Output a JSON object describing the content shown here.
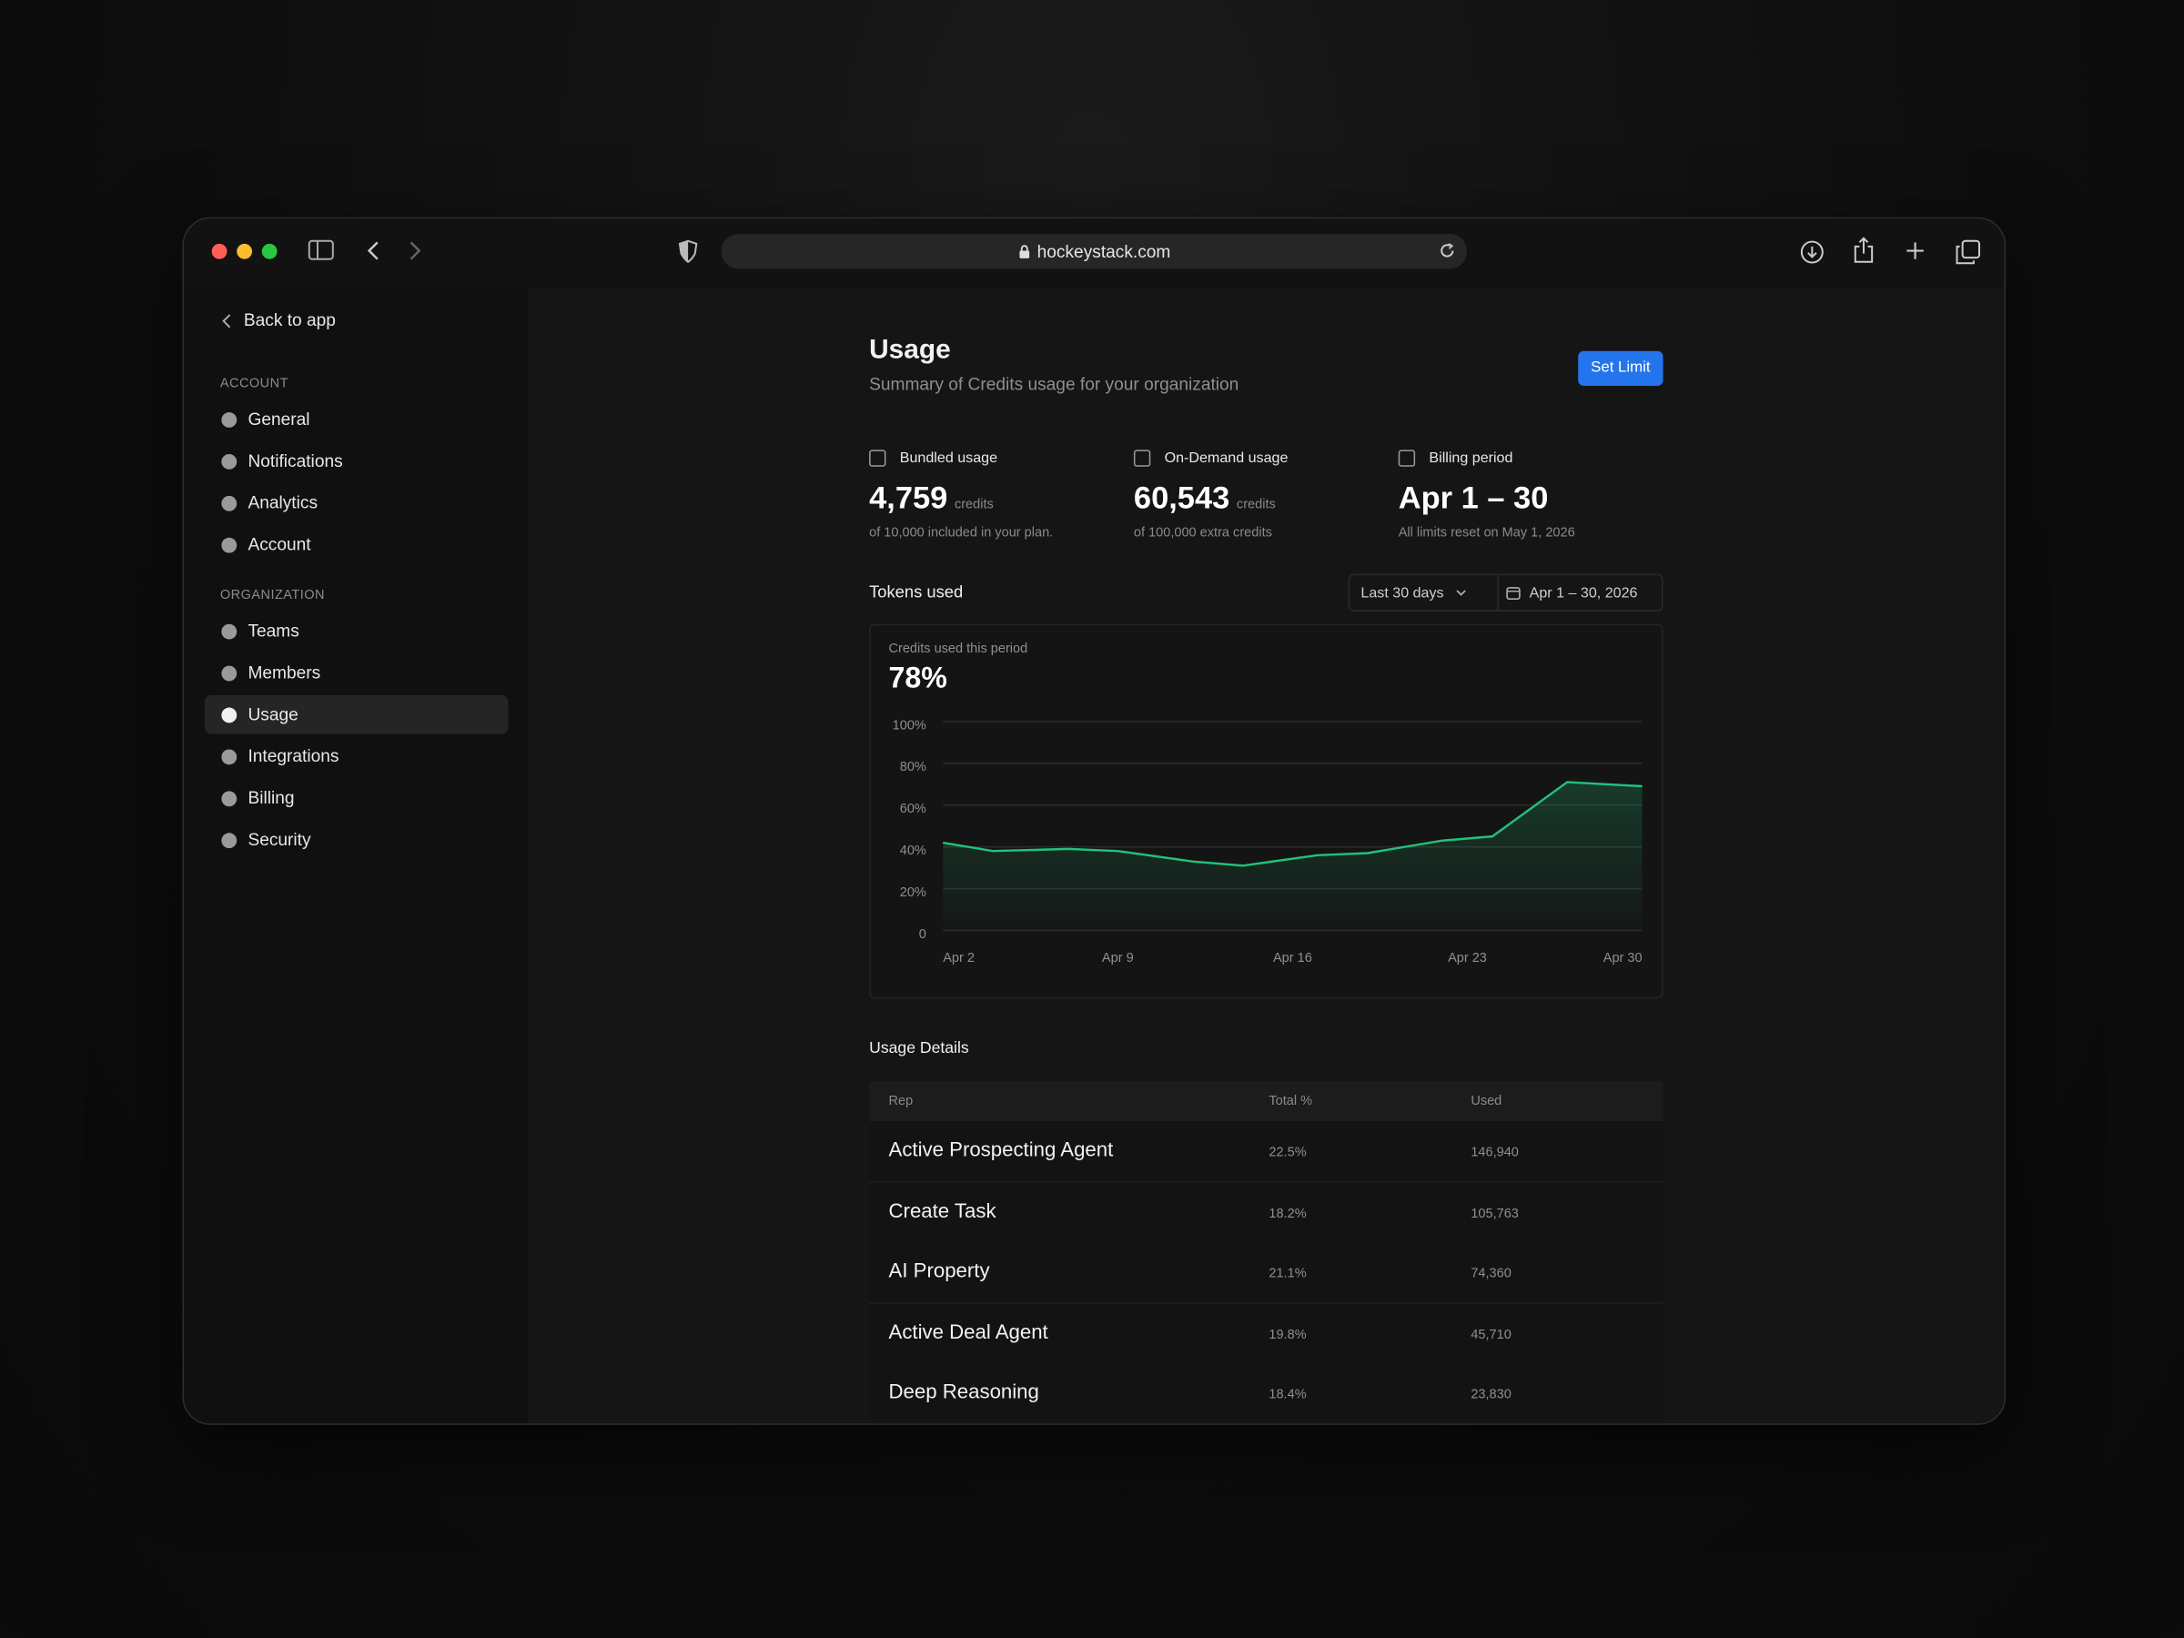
{
  "browser": {
    "url": "hockeystack.com"
  },
  "sidebar": {
    "back": "Back to app",
    "sections": [
      {
        "title": "ACCOUNT",
        "items": [
          {
            "label": "General"
          },
          {
            "label": "Notifications"
          },
          {
            "label": "Analytics"
          },
          {
            "label": "Account"
          }
        ]
      },
      {
        "title": "ORGANIZATION",
        "items": [
          {
            "label": "Teams"
          },
          {
            "label": "Members"
          },
          {
            "label": "Usage",
            "active": true
          },
          {
            "label": "Integrations"
          },
          {
            "label": "Billing"
          },
          {
            "label": "Security"
          }
        ]
      }
    ]
  },
  "header": {
    "title": "Usage",
    "subtitle": "Summary of Credits usage for your organization",
    "button": "Set Limit"
  },
  "stats": [
    {
      "label": "Bundled usage",
      "value": "4,759",
      "unit": "credits",
      "note": "of 10,000 included in your plan."
    },
    {
      "label": "On-Demand usage",
      "value": "60,543",
      "unit": "credits",
      "note": "of 100,000 extra credits"
    },
    {
      "label": "Billing period",
      "value": "Apr 1 – 30",
      "note": "All limits reset on May 1, 2026"
    }
  ],
  "tokens": {
    "title": "Tokens used",
    "range": "Last 30 days",
    "dates": "Apr 1 – 30, 2026"
  },
  "chart_data": {
    "type": "area",
    "subtitle": "Credits used this period",
    "headline": "78%",
    "x": [
      2,
      4,
      7,
      9,
      12,
      14,
      17,
      19,
      22,
      24,
      27,
      30
    ],
    "xlim": [
      2,
      30
    ],
    "xticks": [
      {
        "value": 2,
        "label": "Apr 2"
      },
      {
        "value": 9,
        "label": "Apr 9"
      },
      {
        "value": 16,
        "label": "Apr 16"
      },
      {
        "value": 23,
        "label": "Apr 23"
      },
      {
        "value": 30,
        "label": "Apr 30"
      }
    ],
    "series": [
      {
        "name": "Credits used",
        "color": "#22c17c",
        "values": [
          42,
          38,
          39,
          38,
          33,
          31,
          36,
          37,
          43,
          45,
          71,
          69
        ]
      }
    ],
    "ylim": [
      0,
      100
    ],
    "yticks": [
      0,
      {
        "value": 20,
        "label": "20%"
      },
      {
        "value": 40,
        "label": "40%"
      },
      {
        "value": 60,
        "label": "60%"
      },
      {
        "value": 80,
        "label": "80%"
      },
      {
        "value": 100,
        "label": "100%"
      }
    ],
    "grid": true
  },
  "table": {
    "title": "Usage Details",
    "columns": [
      "Rep",
      "Total %",
      "Used"
    ],
    "rows": [
      [
        "Active Prospecting Agent",
        "22.5%",
        "146,940"
      ],
      [
        "Create Task",
        "18.2%",
        "105,763"
      ],
      [
        "AI Property",
        "21.1%",
        "74,360"
      ],
      [
        "Active Deal Agent",
        "19.8%",
        "45,710"
      ],
      [
        "Deep Reasoning",
        "18.4%",
        "23,830"
      ]
    ]
  }
}
